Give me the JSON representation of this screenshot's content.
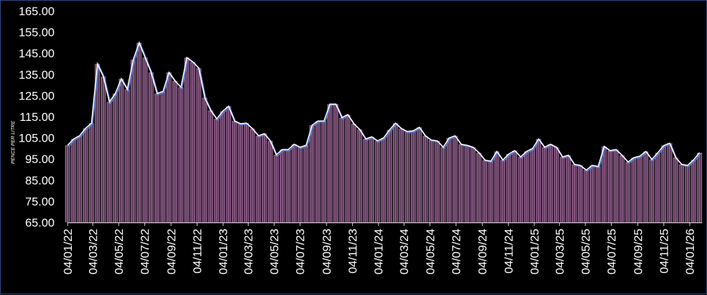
{
  "chart_data": {
    "type": "bar",
    "title": "",
    "xlabel": "",
    "ylabel": "PENCE PER LITRE",
    "ylim": [
      65,
      165
    ],
    "yticks": [
      "65.00",
      "75.00",
      "85.00",
      "95.00",
      "105.00",
      "115.00",
      "125.00",
      "135.00",
      "145.00",
      "155.00",
      "165.00"
    ],
    "xticks": [
      "04/01/22",
      "04/03/22",
      "04/05/22",
      "04/07/22",
      "04/09/22",
      "04/11/22",
      "04/01/23",
      "04/03/23",
      "04/05/23",
      "04/07/23",
      "04/09/23",
      "04/11/23",
      "04/01/24",
      "04/03/24",
      "04/05/24",
      "04/07/24",
      "04/09/24",
      "04/11/24",
      "04/01/25",
      "04/03/25",
      "04/05/25",
      "04/07/25",
      "04/09/25",
      "04/11/25",
      "04/01/26"
    ],
    "grid": false,
    "legend": "none",
    "colors": {
      "bar": "#8c5c88",
      "line": "#ffffff",
      "line_shadow": "#5b7fd6",
      "frame": "#2c4c8c"
    },
    "x": [
      "04/01/22",
      "18/01/22",
      "01/02/22",
      "15/02/22",
      "01/03/22",
      "15/03/22",
      "29/03/22",
      "12/04/22",
      "26/04/22",
      "10/05/22",
      "24/05/22",
      "07/06/22",
      "21/06/22",
      "05/07/22",
      "19/07/22",
      "02/08/22",
      "16/08/22",
      "30/08/22",
      "13/09/22",
      "27/09/22",
      "11/10/22",
      "25/10/22",
      "08/11/22",
      "22/11/22",
      "06/12/22",
      "20/12/22",
      "03/01/23",
      "17/01/23",
      "31/01/23",
      "14/02/23",
      "28/02/23",
      "14/03/23",
      "28/03/23",
      "11/04/23",
      "25/04/23",
      "09/05/23",
      "23/05/23",
      "06/06/23",
      "20/06/23",
      "04/07/23",
      "18/07/23",
      "01/08/23",
      "15/08/23",
      "29/08/23",
      "12/09/23",
      "26/09/23",
      "10/10/23",
      "24/10/23",
      "07/11/23",
      "21/11/23",
      "05/12/23",
      "19/12/23",
      "02/01/24",
      "16/01/24",
      "30/01/24",
      "13/02/24",
      "27/02/24",
      "12/03/24",
      "26/03/24",
      "09/04/24",
      "23/04/24",
      "07/05/24",
      "21/05/24",
      "04/06/24",
      "18/06/24",
      "02/07/24",
      "16/07/24",
      "30/07/24",
      "13/08/24",
      "27/08/24",
      "10/09/24",
      "24/09/24",
      "08/10/24",
      "22/10/24",
      "05/11/24",
      "19/11/24",
      "03/12/24",
      "17/12/24",
      "31/12/24",
      "14/01/25",
      "28/01/25",
      "11/02/25",
      "25/02/25",
      "11/03/25",
      "25/03/25",
      "08/04/25",
      "22/04/25",
      "06/05/25",
      "20/05/25",
      "03/06/25",
      "17/06/25",
      "01/07/25",
      "15/07/25",
      "29/07/25",
      "12/08/25",
      "26/08/25",
      "09/09/25",
      "23/09/25",
      "07/10/25",
      "21/10/25",
      "04/11/25",
      "18/11/25",
      "02/12/25",
      "16/12/25",
      "30/12/25",
      "13/01/26",
      "27/01/26"
    ],
    "values": [
      101.5,
      104.5,
      106,
      109.5,
      112,
      140,
      134,
      122,
      126,
      133,
      128,
      142,
      150,
      143,
      136,
      126,
      127,
      136,
      132,
      129,
      143,
      141,
      138,
      124,
      118,
      114,
      117.6,
      120,
      113,
      111.7,
      112,
      109.4,
      106,
      107,
      103.6,
      97,
      99.5,
      99.5,
      102,
      100.6,
      101.5,
      111,
      113,
      113,
      121,
      121,
      114.6,
      116,
      111.7,
      109,
      104.5,
      105.5,
      103.6,
      105,
      108.8,
      112,
      109.4,
      108,
      108.4,
      110,
      106,
      104,
      103.6,
      100.6,
      105,
      106,
      102,
      101.5,
      100.6,
      98,
      94.5,
      94,
      98.6,
      94.5,
      97.4,
      99,
      96,
      98.6,
      100,
      104.5,
      100.6,
      102,
      100.6,
      96,
      96.8,
      92.5,
      92,
      89.8,
      92,
      91.5,
      101,
      99,
      99.5,
      96.8,
      93.6,
      95.7,
      96.4,
      98.6,
      94.8,
      98,
      101.4,
      102.5,
      95.7,
      92.5,
      92,
      94.6,
      98
    ]
  }
}
